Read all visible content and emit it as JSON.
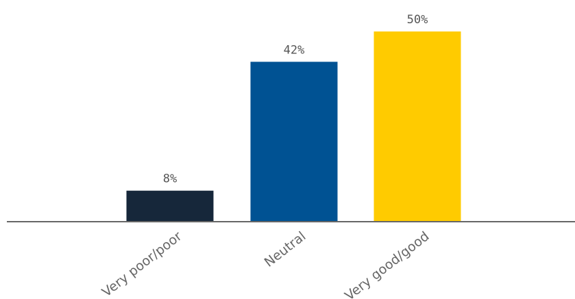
{
  "chart_data": {
    "type": "bar",
    "categories": [
      "Very poor/poor",
      "Neutral",
      "Very good/good"
    ],
    "values": [
      8,
      42,
      50
    ],
    "value_labels": [
      "8%",
      "42%",
      "50%"
    ],
    "colors": [
      "#16273a",
      "#005293",
      "#ffcb00"
    ],
    "axis_color": "#666666",
    "ylim": [
      0,
      50
    ],
    "grid": false,
    "legend": "none"
  }
}
